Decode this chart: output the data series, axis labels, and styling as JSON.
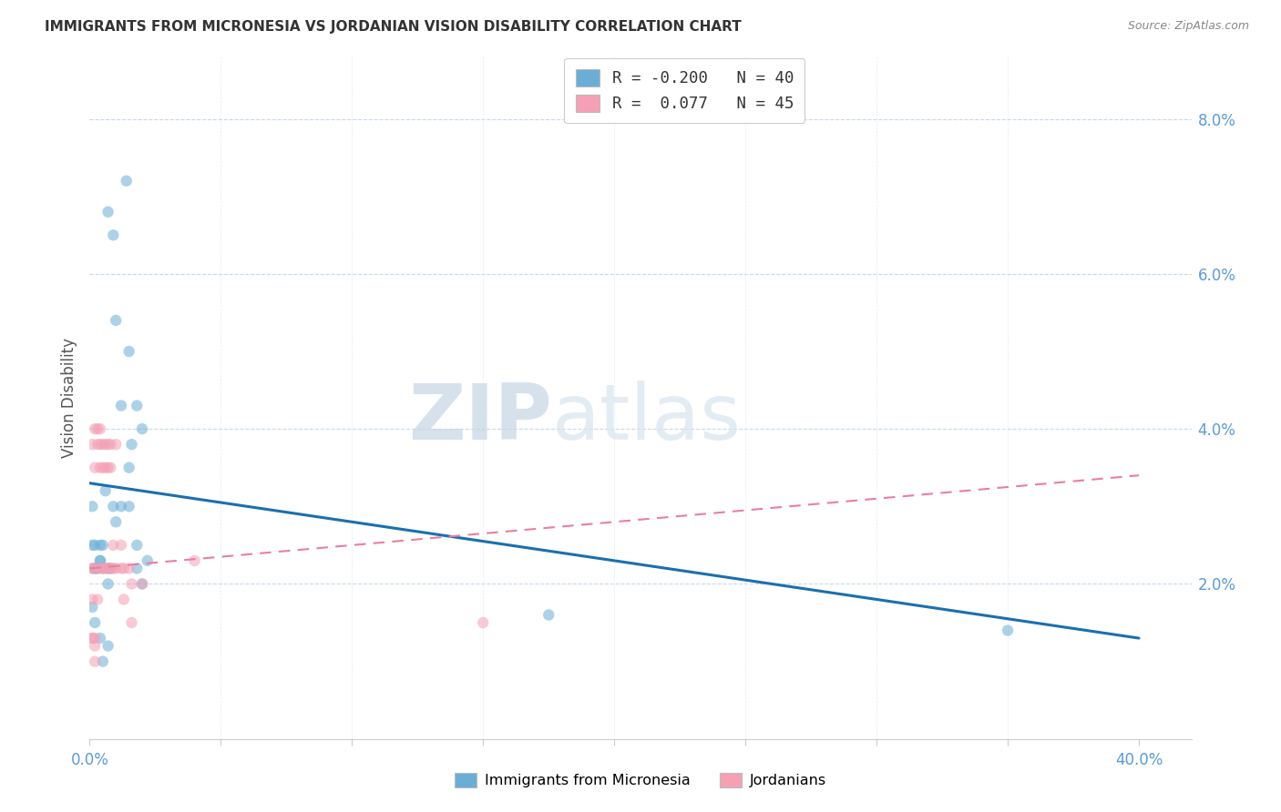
{
  "title": "IMMIGRANTS FROM MICRONESIA VS JORDANIAN VISION DISABILITY CORRELATION CHART",
  "source": "Source: ZipAtlas.com",
  "ylabel": "Vision Disability",
  "xticks": [
    0.0,
    0.05,
    0.1,
    0.15,
    0.2,
    0.25,
    0.3,
    0.35,
    0.4
  ],
  "xtick_labels": [
    "0.0%",
    "",
    "",
    "",
    "",
    "",
    "",
    "",
    "40.0%"
  ],
  "yticks": [
    0.0,
    0.02,
    0.04,
    0.06,
    0.08
  ],
  "ytick_labels": [
    "",
    "2.0%",
    "4.0%",
    "6.0%",
    "8.0%"
  ],
  "xlim": [
    0.0,
    0.42
  ],
  "ylim": [
    0.0,
    0.088
  ],
  "blue_R": -0.2,
  "blue_N": 40,
  "pink_R": 0.077,
  "pink_N": 45,
  "legend_label_blue": "Immigrants from Micronesia",
  "legend_label_pink": "Jordanians",
  "blue_color": "#6aaed6",
  "pink_color": "#f4a0b5",
  "blue_line_color": "#1a6faf",
  "pink_line_color": "#e87fa0",
  "background_color": "#ffffff",
  "grid_color": "#c8d8e8",
  "title_color": "#333333",
  "source_color": "#888888",
  "axis_label_color": "#5b9bd5",
  "blue_points_x": [
    0.004,
    0.01,
    0.014,
    0.001,
    0.007,
    0.009,
    0.002,
    0.015,
    0.018,
    0.012,
    0.015,
    0.006,
    0.01,
    0.02,
    0.016,
    0.015,
    0.018,
    0.022,
    0.002,
    0.004,
    0.007,
    0.008,
    0.002,
    0.004,
    0.005,
    0.007,
    0.009,
    0.001,
    0.003,
    0.005,
    0.012,
    0.018,
    0.02,
    0.175,
    0.35,
    0.001,
    0.002,
    0.004,
    0.005,
    0.007
  ],
  "blue_points_y": [
    0.025,
    0.054,
    0.072,
    0.03,
    0.068,
    0.065,
    0.025,
    0.05,
    0.043,
    0.043,
    0.035,
    0.032,
    0.028,
    0.04,
    0.038,
    0.03,
    0.025,
    0.023,
    0.022,
    0.023,
    0.022,
    0.022,
    0.022,
    0.023,
    0.025,
    0.02,
    0.03,
    0.025,
    0.022,
    0.022,
    0.03,
    0.022,
    0.02,
    0.016,
    0.014,
    0.017,
    0.015,
    0.013,
    0.01,
    0.012
  ],
  "pink_points_x": [
    0.001,
    0.001,
    0.002,
    0.002,
    0.002,
    0.003,
    0.003,
    0.003,
    0.003,
    0.004,
    0.004,
    0.004,
    0.004,
    0.005,
    0.005,
    0.005,
    0.006,
    0.006,
    0.006,
    0.007,
    0.007,
    0.007,
    0.008,
    0.008,
    0.008,
    0.009,
    0.009,
    0.01,
    0.01,
    0.012,
    0.012,
    0.013,
    0.013,
    0.015,
    0.016,
    0.016,
    0.001,
    0.001,
    0.001,
    0.002,
    0.002,
    0.02,
    0.04,
    0.001,
    0.15
  ],
  "pink_points_y": [
    0.038,
    0.022,
    0.04,
    0.035,
    0.013,
    0.04,
    0.038,
    0.022,
    0.018,
    0.04,
    0.038,
    0.035,
    0.022,
    0.038,
    0.035,
    0.022,
    0.038,
    0.035,
    0.022,
    0.038,
    0.035,
    0.022,
    0.038,
    0.035,
    0.022,
    0.025,
    0.022,
    0.038,
    0.022,
    0.025,
    0.022,
    0.022,
    0.018,
    0.022,
    0.02,
    0.015,
    0.022,
    0.018,
    0.013,
    0.012,
    0.01,
    0.02,
    0.023,
    0.013,
    0.015
  ],
  "blue_line_x0": 0.0,
  "blue_line_x1": 0.4,
  "blue_line_y0": 0.033,
  "blue_line_y1": 0.013,
  "pink_line_x0": 0.0,
  "pink_line_x1": 0.4,
  "pink_line_y0": 0.022,
  "pink_line_y1": 0.034,
  "marker_size": 80,
  "marker_alpha": 0.55
}
